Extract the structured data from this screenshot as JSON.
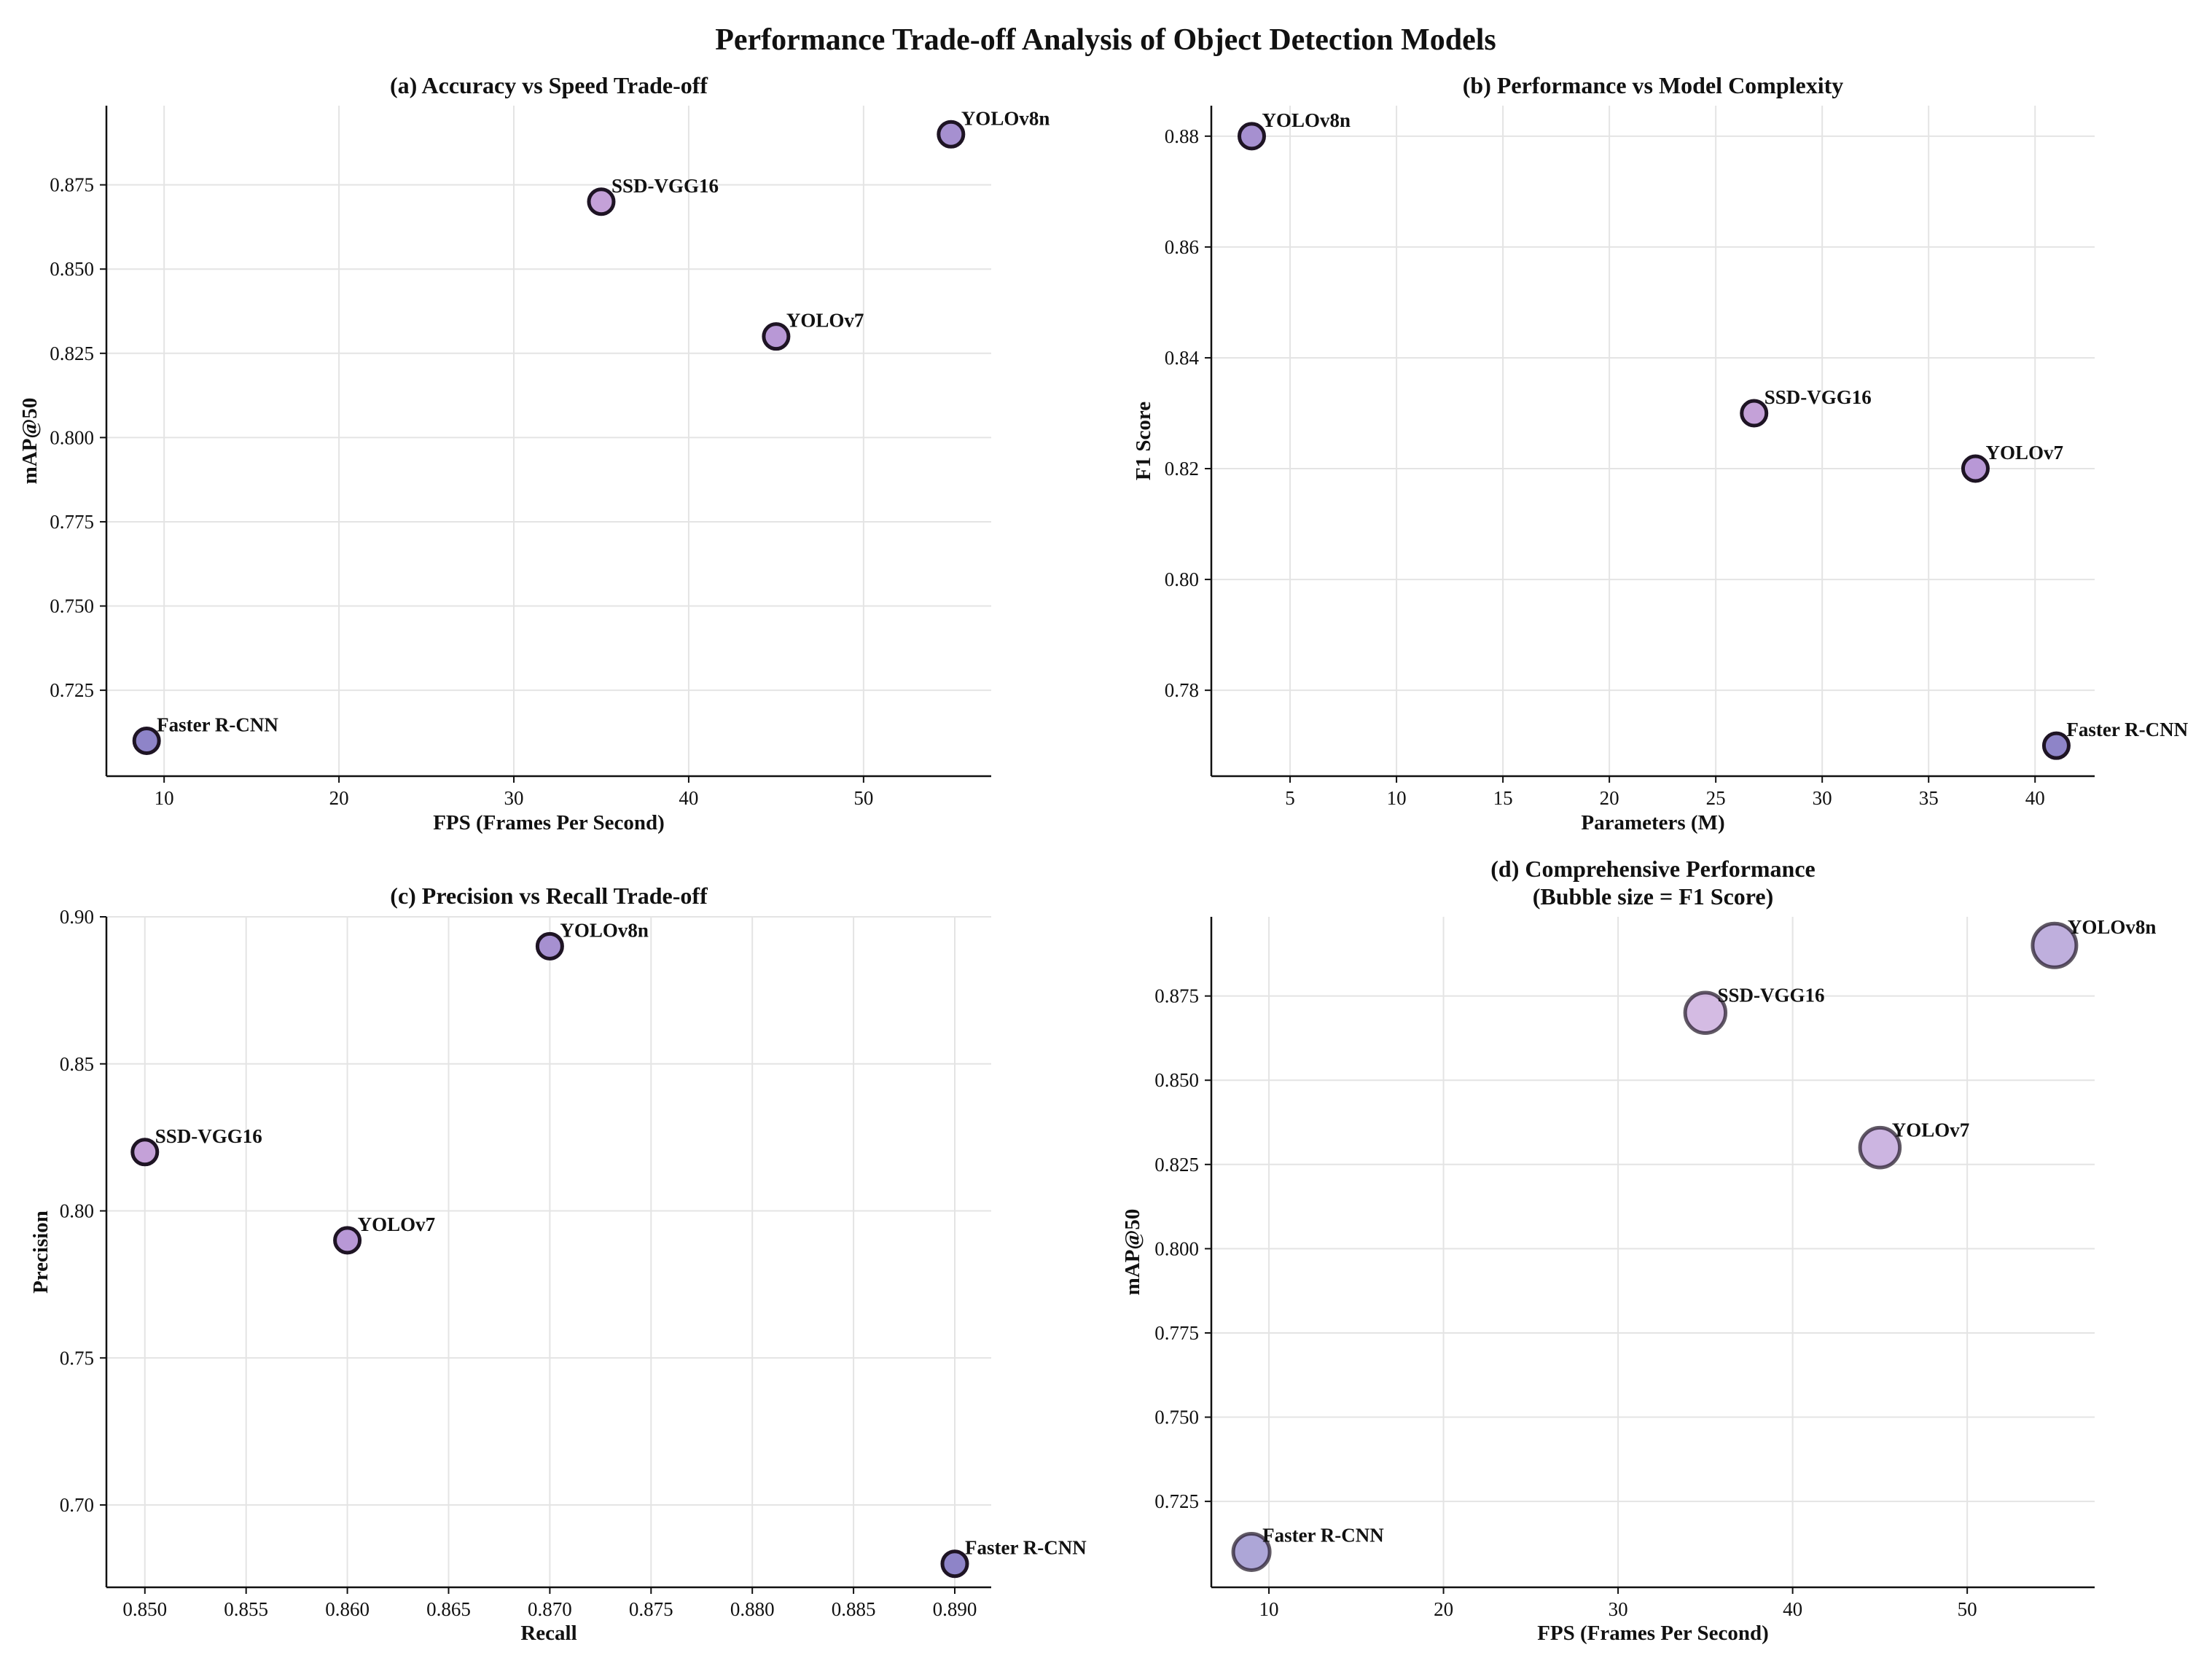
{
  "figure_title": "Performance Trade-off Analysis of Object Detection Models",
  "colors": {
    "YOLOv8n": "#a690d0",
    "SSD-VGG16": "#c4a1d8",
    "YOLOv7": "#b898d6",
    "Faster R-CNN": "#8e84c8",
    "edge": "#1e1424"
  },
  "chart_data": [
    {
      "id": "a",
      "type": "scatter",
      "title": "(a) Accuracy vs Speed Trade-off",
      "xlabel": "FPS (Frames Per Second)",
      "ylabel": "mAP@50",
      "xlim": [
        6.7,
        57.3
      ],
      "ylim": [
        0.6995,
        0.8985
      ],
      "xticks": [
        10,
        20,
        30,
        40,
        50
      ],
      "xtick_labels": [
        "10",
        "20",
        "30",
        "40",
        "50"
      ],
      "yticks": [
        0.725,
        0.75,
        0.775,
        0.8,
        0.825,
        0.85,
        0.875
      ],
      "ytick_labels": [
        "0.725",
        "0.750",
        "0.775",
        "0.800",
        "0.825",
        "0.850",
        "0.875"
      ],
      "points": [
        {
          "label": "YOLOv8n",
          "x": 55,
          "y": 0.89
        },
        {
          "label": "SSD-VGG16",
          "x": 35,
          "y": 0.87
        },
        {
          "label": "YOLOv7",
          "x": 45,
          "y": 0.83
        },
        {
          "label": "Faster R-CNN",
          "x": 9,
          "y": 0.71
        }
      ]
    },
    {
      "id": "b",
      "type": "scatter",
      "title": "(b) Performance vs Model Complexity",
      "xlabel": "Parameters (M)",
      "ylabel": "F1 Score",
      "xlim": [
        1.3,
        42.8
      ],
      "ylim": [
        0.7645,
        0.8855
      ],
      "xticks": [
        5,
        10,
        15,
        20,
        25,
        30,
        35,
        40
      ],
      "xtick_labels": [
        "5",
        "10",
        "15",
        "20",
        "25",
        "30",
        "35",
        "40"
      ],
      "yticks": [
        0.78,
        0.8,
        0.82,
        0.84,
        0.86,
        0.88
      ],
      "ytick_labels": [
        "0.78",
        "0.80",
        "0.82",
        "0.84",
        "0.86",
        "0.88"
      ],
      "points": [
        {
          "label": "YOLOv8n",
          "x": 3.2,
          "y": 0.88
        },
        {
          "label": "SSD-VGG16",
          "x": 26.8,
          "y": 0.83
        },
        {
          "label": "YOLOv7",
          "x": 37.2,
          "y": 0.82
        },
        {
          "label": "Faster R-CNN",
          "x": 41,
          "y": 0.77
        }
      ]
    },
    {
      "id": "c",
      "type": "scatter",
      "title": "(c) Precision vs Recall Trade-off",
      "xlabel": "Recall",
      "ylabel": "Precision",
      "xlim": [
        0.8481,
        0.8918
      ],
      "ylim": [
        0.672,
        0.9
      ],
      "xticks": [
        0.85,
        0.855,
        0.86,
        0.865,
        0.87,
        0.875,
        0.88,
        0.885,
        0.89
      ],
      "xtick_labels": [
        "0.850",
        "0.855",
        "0.860",
        "0.865",
        "0.870",
        "0.875",
        "0.880",
        "0.885",
        "0.890"
      ],
      "yticks": [
        0.7,
        0.75,
        0.8,
        0.85,
        0.9
      ],
      "ytick_labels": [
        "0.70",
        "0.75",
        "0.80",
        "0.85",
        "0.90"
      ],
      "points": [
        {
          "label": "YOLOv8n",
          "x": 0.87,
          "y": 0.89
        },
        {
          "label": "SSD-VGG16",
          "x": 0.85,
          "y": 0.82
        },
        {
          "label": "YOLOv7",
          "x": 0.86,
          "y": 0.79
        },
        {
          "label": "Faster R-CNN",
          "x": 0.89,
          "y": 0.68
        }
      ]
    },
    {
      "id": "d",
      "type": "scatter",
      "title": "(d) Comprehensive Performance",
      "subtitle": "(Bubble size = F1 Score)",
      "xlabel": "FPS (Frames Per Second)",
      "ylabel": "mAP@50",
      "xlim": [
        6.7,
        57.3
      ],
      "ylim": [
        0.6995,
        0.8985
      ],
      "xticks": [
        10,
        20,
        30,
        40,
        50
      ],
      "xtick_labels": [
        "10",
        "20",
        "30",
        "40",
        "50"
      ],
      "yticks": [
        0.725,
        0.75,
        0.775,
        0.8,
        0.825,
        0.85,
        0.875
      ],
      "ytick_labels": [
        "0.725",
        "0.750",
        "0.775",
        "0.800",
        "0.825",
        "0.850",
        "0.875"
      ],
      "points": [
        {
          "label": "YOLOv8n",
          "x": 55,
          "y": 0.89,
          "f1": 0.88
        },
        {
          "label": "SSD-VGG16",
          "x": 35,
          "y": 0.87,
          "f1": 0.83
        },
        {
          "label": "YOLOv7",
          "x": 45,
          "y": 0.83,
          "f1": 0.82
        },
        {
          "label": "Faster R-CNN",
          "x": 9,
          "y": 0.71,
          "f1": 0.77
        }
      ]
    }
  ]
}
